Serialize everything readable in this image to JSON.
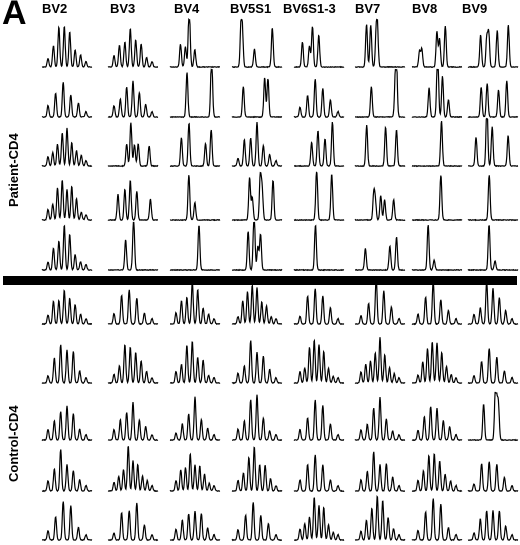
{
  "panel": {
    "letter": "A"
  },
  "columns": [
    "BV2",
    "BV3",
    "BV4",
    "BV5S1",
    "BV6S1-3",
    "BV7",
    "BV8",
    "BV9"
  ],
  "groups": [
    {
      "label": "Patient-CD4",
      "rows": 5
    },
    {
      "label": "Control-CD4",
      "rows": 5
    }
  ],
  "colors": {
    "ink": "#000000",
    "background": "#ffffff"
  }
}
